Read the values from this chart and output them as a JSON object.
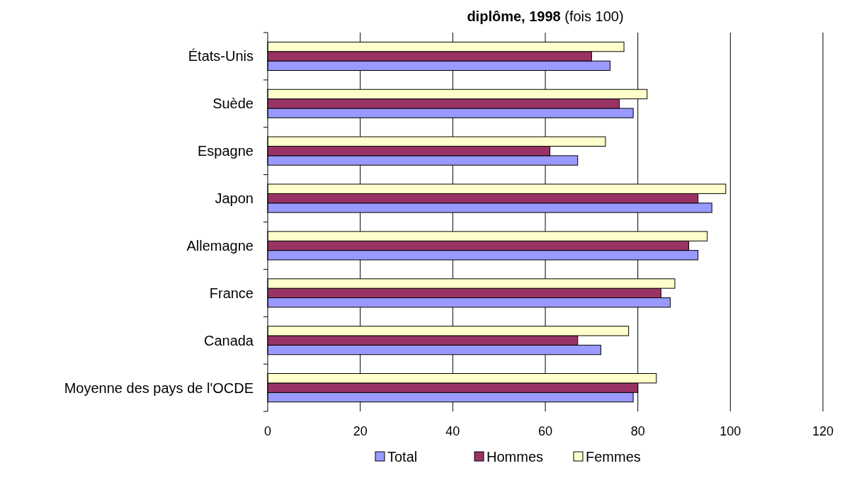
{
  "chart_data": {
    "type": "bar",
    "orientation": "horizontal",
    "title": "diplôme, 1998 (fois 100)",
    "categories": [
      "États-Unis",
      "Suède",
      "Espagne",
      "Japon",
      "Allemagne",
      "France",
      "Canada",
      "Moyenne des pays de l'OCDE"
    ],
    "series": [
      {
        "name": "Total",
        "color": "#9999ff",
        "values": [
          74,
          79,
          67,
          96,
          93,
          87,
          72,
          79
        ]
      },
      {
        "name": "Hommes",
        "color": "#993366",
        "values": [
          70,
          76,
          61,
          93,
          91,
          85,
          67,
          80
        ]
      },
      {
        "name": "Femmes",
        "color": "#ffffcc",
        "values": [
          77,
          82,
          73,
          99,
          95,
          88,
          78,
          84
        ]
      }
    ],
    "xlim": [
      0,
      120
    ],
    "xticks": [
      0,
      20,
      40,
      60,
      80,
      100,
      120
    ],
    "grid": "x",
    "legend": "bottom"
  }
}
